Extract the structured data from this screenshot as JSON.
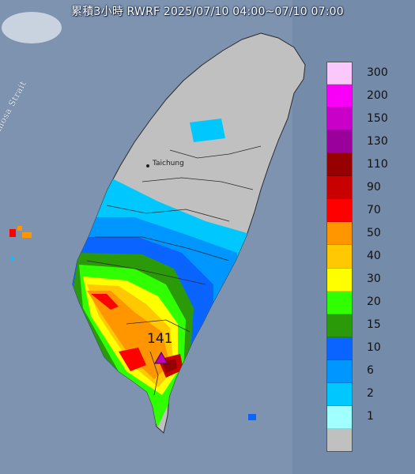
{
  "title": "累積3小時 RWRF 2025/07/10 04:00~07/10 07:00",
  "strait_label": "Formosa Strait",
  "city_label": "Taichung",
  "peak_value": "141",
  "legend": [
    {
      "label": "300",
      "color": "#fbc8fb"
    },
    {
      "label": "200",
      "color": "#f800f8"
    },
    {
      "label": "150",
      "color": "#c800c8"
    },
    {
      "label": "130",
      "color": "#9a009a"
    },
    {
      "label": "110",
      "color": "#960000"
    },
    {
      "label": "90",
      "color": "#c80000"
    },
    {
      "label": "70",
      "color": "#ff0000"
    },
    {
      "label": "50",
      "color": "#ff9600"
    },
    {
      "label": "40",
      "color": "#ffc800"
    },
    {
      "label": "30",
      "color": "#ffff00"
    },
    {
      "label": "20",
      "color": "#30ff00"
    },
    {
      "label": "15",
      "color": "#2a9a08"
    },
    {
      "label": "10",
      "color": "#0a64ff"
    },
    {
      "label": "6",
      "color": "#0096ff"
    },
    {
      "label": "2",
      "color": "#00c8ff"
    },
    {
      "label": "1",
      "color": "#a0ffff"
    },
    {
      "label": "",
      "color": "#c0c0c0"
    }
  ]
}
